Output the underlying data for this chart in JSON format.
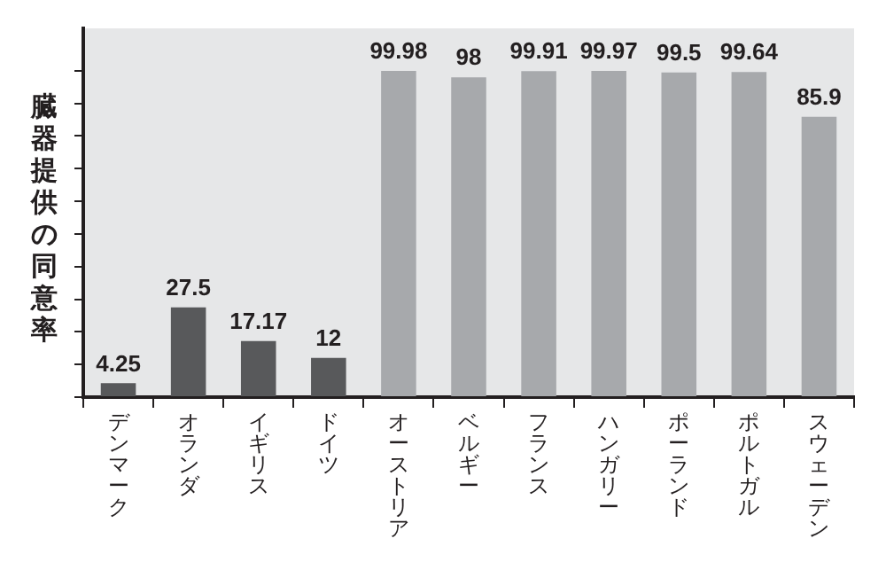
{
  "chart_data": {
    "type": "bar",
    "ylabel": "臓器提供の同意率",
    "categories": [
      "デンマーク",
      "オランダ",
      "イギリス",
      "ドイツ",
      "オーストリア",
      "ベルギー",
      "フランス",
      "ハンガリー",
      "ポーランド",
      "ポルトガル",
      "スウェーデン"
    ],
    "values": [
      4.25,
      27.5,
      17.17,
      12,
      99.98,
      98,
      99.91,
      99.97,
      99.5,
      99.64,
      85.9
    ],
    "colors": [
      "#58595b",
      "#58595b",
      "#58595b",
      "#58595b",
      "#a7a9ac",
      "#a7a9ac",
      "#a7a9ac",
      "#a7a9ac",
      "#a7a9ac",
      "#a7a9ac",
      "#a7a9ac"
    ],
    "ylim": [
      0,
      113
    ],
    "yticks": [
      {
        "value": 0,
        "label": null
      },
      {
        "value": 10,
        "label": null
      },
      {
        "value": 20,
        "label": null
      },
      {
        "value": 30,
        "label": null
      },
      {
        "value": 40,
        "label": null
      },
      {
        "value": 50,
        "label": null
      },
      {
        "value": 60,
        "label": null
      },
      {
        "value": 70,
        "label": null
      },
      {
        "value": 80,
        "label": null
      },
      {
        "value": 90,
        "label": null
      },
      {
        "value": 100,
        "label": null
      }
    ],
    "tick_labels": "x",
    "data_labels": true,
    "grid": false,
    "legend": false
  }
}
